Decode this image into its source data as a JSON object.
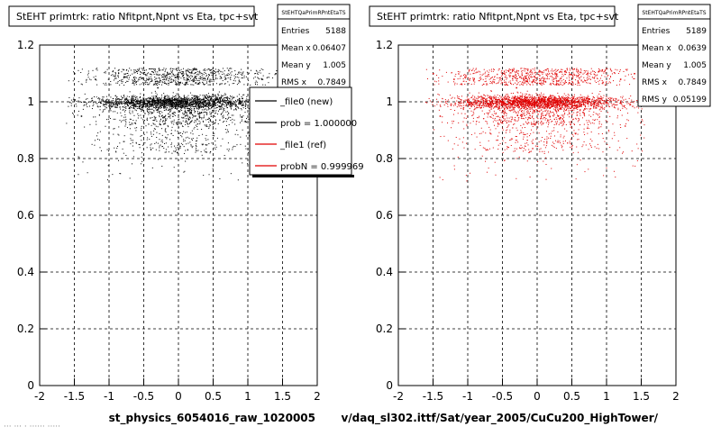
{
  "chart_data": [
    {
      "type": "scatter",
      "title": "StEHT primtrk: ratio Nfitpnt,Npnt vs Eta, tpc+svt",
      "xlabel": "st_physics_6054016_raw_1020005",
      "ylabel": "",
      "xlim": [
        -2,
        2
      ],
      "ylim": [
        0,
        1.2
      ],
      "xticks": [
        -2,
        -1.5,
        -1,
        -0.5,
        0,
        0.5,
        1,
        1.5,
        2
      ],
      "yticks": [
        0,
        0.2,
        0.4,
        0.6,
        0.8,
        1,
        1.2
      ],
      "xtick_labels": [
        "-2",
        "-1.5",
        "-1",
        "-0.5",
        "0",
        "0.5",
        "1",
        "1.5",
        "2"
      ],
      "ytick_labels": [
        "0",
        "0.2",
        "0.4",
        "0.6",
        "0.8",
        "1",
        "1.2"
      ],
      "grid": true,
      "point_color": "#000000",
      "series": [
        {
          "sample_points": [
            {
              "x": -1.5,
              "y": 1.1
            },
            {
              "x": -1.2,
              "y": 1.08
            },
            {
              "x": -1.0,
              "y": 1.0
            },
            {
              "x": -0.5,
              "y": 1.0
            },
            {
              "x": 0,
              "y": 1.0
            },
            {
              "x": 0.5,
              "y": 0.99
            },
            {
              "x": 1.0,
              "y": 1.0
            },
            {
              "x": 1.2,
              "y": 1.08
            },
            {
              "x": -0.3,
              "y": 1.05
            },
            {
              "x": 0.3,
              "y": 0.95
            },
            {
              "x": -1.4,
              "y": 0.95
            },
            {
              "x": 1.4,
              "y": 1.1
            }
          ]
        }
      ],
      "stats": {
        "title": "StEHTQaPrimRPntEtaTS",
        "rows": [
          {
            "label": "Entries",
            "value": "5188"
          },
          {
            "label": "Mean x",
            "value": "0.06407"
          },
          {
            "label": "Mean y",
            "value": "1.005"
          },
          {
            "label": "RMS x",
            "value": "0.7849"
          }
        ]
      },
      "legend": {
        "placement": "right",
        "entries": [
          {
            "label": "_file0 (new)",
            "color": "#000000"
          },
          {
            "label": "prob = 1.000000",
            "color": "#000000"
          },
          {
            "label": "_file1 (ref)",
            "color": "#e00000"
          },
          {
            "label": "probN = 0.999969",
            "color": "#e00000"
          }
        ]
      },
      "footer": "··· ··· · ······ ·····"
    },
    {
      "type": "scatter",
      "title": "StEHT primtrk: ratio Nfitpnt,Npnt vs Eta, tpc+svt",
      "xlabel": "v/daq_sl302.ittf/Sat/year_2005/CuCu200_HighTower/",
      "ylabel": "",
      "xlim": [
        -2,
        2
      ],
      "ylim": [
        0,
        1.2
      ],
      "xticks": [
        -2,
        -1.5,
        -1,
        -0.5,
        0,
        0.5,
        1,
        1.5,
        2
      ],
      "yticks": [
        0,
        0.2,
        0.4,
        0.6,
        0.8,
        1,
        1.2
      ],
      "xtick_labels": [
        "-2",
        "-1.5",
        "-1",
        "-0.5",
        "0",
        "0.5",
        "1",
        "1.5",
        "2"
      ],
      "ytick_labels": [
        "0",
        "0.2",
        "0.4",
        "0.6",
        "0.8",
        "1",
        "1.2"
      ],
      "grid": true,
      "point_color": "#e00000",
      "series": [
        {
          "sample_points": [
            {
              "x": -1.5,
              "y": 1.1
            },
            {
              "x": -1.2,
              "y": 1.08
            },
            {
              "x": -1.0,
              "y": 1.0
            },
            {
              "x": -0.5,
              "y": 1.0
            },
            {
              "x": 0,
              "y": 1.0
            },
            {
              "x": 0.5,
              "y": 0.99
            },
            {
              "x": 1.0,
              "y": 1.0
            },
            {
              "x": 1.2,
              "y": 1.08
            },
            {
              "x": -0.3,
              "y": 1.05
            },
            {
              "x": 0.3,
              "y": 0.95
            },
            {
              "x": -1.4,
              "y": 0.95
            },
            {
              "x": 1.4,
              "y": 1.1
            }
          ]
        }
      ],
      "stats": {
        "title": "StEHTQaPrimRPntEtaTS",
        "rows": [
          {
            "label": "Entries",
            "value": "5189"
          },
          {
            "label": "Mean x",
            "value": "0.0639"
          },
          {
            "label": "Mean y",
            "value": "1.005"
          },
          {
            "label": "RMS x",
            "value": "0.7849"
          },
          {
            "label": "RMS y",
            "value": "0.05199"
          }
        ]
      }
    }
  ]
}
